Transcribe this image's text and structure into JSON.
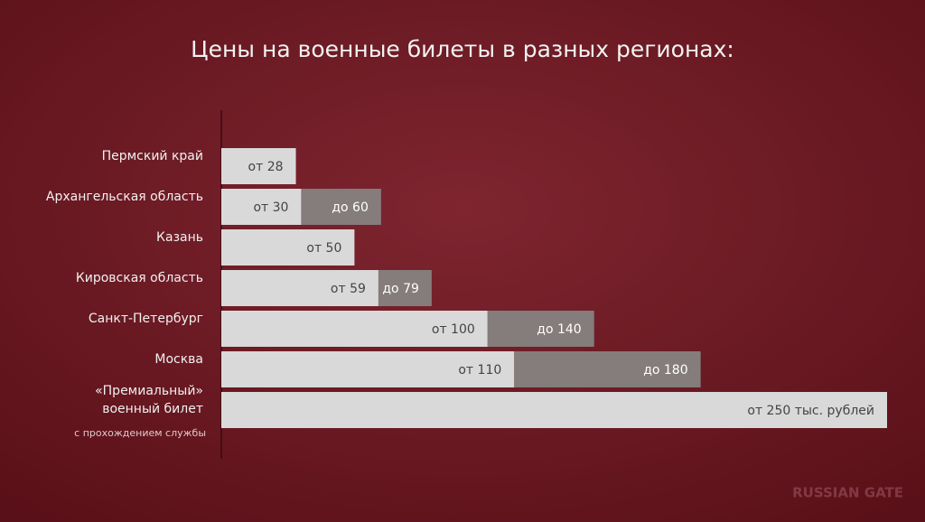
{
  "chart_data": {
    "type": "range-bar",
    "title": "Цены на военные билеты в разных регионах:",
    "categories": [
      "Пермский край",
      "Архангельская область",
      "Казань",
      "Кировская область",
      "Санкт-Петербург",
      "Москва",
      "«Премиальный»\nвоенный билет"
    ],
    "category_note": "с прохождением службы",
    "series": [
      {
        "color": "#d9d9d9",
        "values": [
          28,
          30,
          50,
          59,
          100,
          110,
          250
        ],
        "value_labels": [
          "от 28",
          "от 30",
          "от 50",
          "от 59",
          "от 100",
          "от 110",
          "от 250 тыс. рублей"
        ]
      },
      {
        "color": "#857c7c",
        "values": [
          null,
          60,
          null,
          79,
          140,
          180,
          null
        ],
        "value_labels": [
          null,
          "до 60",
          null,
          "до 79",
          "до 140",
          "до 180",
          null
        ]
      }
    ],
    "watermark": "RUSSIAN GATE"
  }
}
